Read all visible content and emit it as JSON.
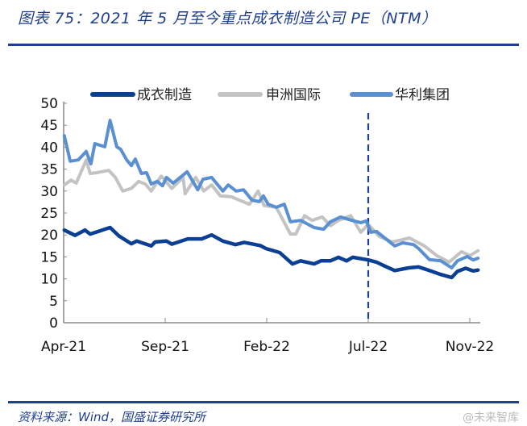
{
  "header": {
    "title": "图表 75：2021 年 5 月至今重点成衣制造公司 PE（NTM）"
  },
  "footer": {
    "source": "资料来源：Wind，国盛证券研究所",
    "watermark": "@未来智库"
  },
  "colors": {
    "title": "#1f3f8f",
    "rule": "#1d3f8c"
  },
  "chart_data": {
    "type": "line",
    "title": "",
    "xlabel": "",
    "ylabel": "",
    "ylim": [
      0,
      50
    ],
    "yticks": [
      0,
      5,
      10,
      15,
      20,
      25,
      30,
      35,
      40,
      45,
      50
    ],
    "xticks": [
      {
        "date": "2021-04-01",
        "label": "Apr-21"
      },
      {
        "date": "2021-09-01",
        "label": "Sep-21"
      },
      {
        "date": "2022-02-01",
        "label": "Feb-22"
      },
      {
        "date": "2022-07-01",
        "label": "Jul-22"
      },
      {
        "date": "2022-11-01",
        "label": "Nov-22"
      }
    ],
    "grid": false,
    "legend": "top",
    "annotations": [
      {
        "type": "vertical-dashed-line",
        "date": "2022-07-01",
        "color": "#1d3f8c"
      }
    ],
    "series": [
      {
        "name": "成衣制造",
        "color": "#0a3f94",
        "points": [
          [
            "2021-04-02",
            21.1
          ],
          [
            "2021-04-18",
            19.9
          ],
          [
            "2021-05-03",
            21.1
          ],
          [
            "2021-05-11",
            20.2
          ],
          [
            "2021-06-10",
            21.7
          ],
          [
            "2021-06-23",
            19.8
          ],
          [
            "2021-07-12",
            18.0
          ],
          [
            "2021-07-20",
            18.6
          ],
          [
            "2021-08-11",
            17.5
          ],
          [
            "2021-08-17",
            18.4
          ],
          [
            "2021-09-03",
            18.6
          ],
          [
            "2021-09-11",
            17.9
          ],
          [
            "2021-10-05",
            19.1
          ],
          [
            "2021-10-26",
            19.1
          ],
          [
            "2021-11-10",
            20.0
          ],
          [
            "2021-11-27",
            18.6
          ],
          [
            "2021-12-16",
            17.8
          ],
          [
            "2021-12-29",
            18.3
          ],
          [
            "2022-01-22",
            17.6
          ],
          [
            "2022-01-31",
            16.9
          ],
          [
            "2022-02-20",
            16.0
          ],
          [
            "2022-03-11",
            13.4
          ],
          [
            "2022-03-23",
            14.1
          ],
          [
            "2022-04-12",
            13.4
          ],
          [
            "2022-04-22",
            14.1
          ],
          [
            "2022-05-06",
            14.1
          ],
          [
            "2022-05-18",
            14.9
          ],
          [
            "2022-05-30",
            14.1
          ],
          [
            "2022-06-08",
            14.9
          ],
          [
            "2022-07-01",
            14.3
          ],
          [
            "2022-07-11",
            13.8
          ],
          [
            "2022-07-21",
            12.9
          ],
          [
            "2022-08-02",
            11.9
          ],
          [
            "2022-08-19",
            12.5
          ],
          [
            "2022-08-31",
            12.7
          ],
          [
            "2022-09-13",
            11.9
          ],
          [
            "2022-09-27",
            11.0
          ],
          [
            "2022-10-10",
            10.3
          ],
          [
            "2022-10-17",
            11.7
          ],
          [
            "2022-10-27",
            12.4
          ],
          [
            "2022-11-05",
            11.8
          ],
          [
            "2022-11-11",
            12.0
          ]
        ]
      },
      {
        "name": "申洲国际",
        "color": "#c3c3c3",
        "points": [
          [
            "2021-04-02",
            31.4
          ],
          [
            "2021-04-12",
            32.5
          ],
          [
            "2021-04-20",
            31.8
          ],
          [
            "2021-05-05",
            37.1
          ],
          [
            "2021-05-11",
            34.0
          ],
          [
            "2021-05-21",
            34.2
          ],
          [
            "2021-06-08",
            34.7
          ],
          [
            "2021-06-18",
            33.1
          ],
          [
            "2021-06-29",
            30.0
          ],
          [
            "2021-07-12",
            30.6
          ],
          [
            "2021-07-23",
            32.2
          ],
          [
            "2021-08-02",
            31.6
          ],
          [
            "2021-08-11",
            30.0
          ],
          [
            "2021-08-26",
            33.4
          ],
          [
            "2021-09-11",
            30.6
          ],
          [
            "2021-09-28",
            33.1
          ],
          [
            "2021-10-01",
            29.4
          ],
          [
            "2021-10-17",
            33.1
          ],
          [
            "2021-10-29",
            30.0
          ],
          [
            "2021-11-10",
            31.4
          ],
          [
            "2021-11-23",
            28.9
          ],
          [
            "2021-12-10",
            28.7
          ],
          [
            "2021-12-22",
            27.9
          ],
          [
            "2022-01-06",
            27.0
          ],
          [
            "2022-01-19",
            30.0
          ],
          [
            "2022-01-28",
            26.7
          ],
          [
            "2022-02-15",
            26.3
          ],
          [
            "2022-03-08",
            20.2
          ],
          [
            "2022-03-16",
            20.2
          ],
          [
            "2022-03-29",
            24.4
          ],
          [
            "2022-04-09",
            23.3
          ],
          [
            "2022-04-24",
            24.1
          ],
          [
            "2022-05-06",
            22.1
          ],
          [
            "2022-05-18",
            23.3
          ],
          [
            "2022-06-05",
            24.4
          ],
          [
            "2022-06-20",
            20.6
          ],
          [
            "2022-07-01",
            22.4
          ],
          [
            "2022-07-14",
            19.7
          ],
          [
            "2022-07-30",
            18.4
          ],
          [
            "2022-08-20",
            19.3
          ],
          [
            "2022-09-07",
            17.5
          ],
          [
            "2022-09-22",
            15.3
          ],
          [
            "2022-10-07",
            13.8
          ],
          [
            "2022-10-22",
            16.2
          ],
          [
            "2022-11-01",
            15.3
          ],
          [
            "2022-11-11",
            16.4
          ]
        ]
      },
      {
        "name": "华利集团",
        "color": "#5a8fd2",
        "points": [
          [
            "2021-04-02",
            42.6
          ],
          [
            "2021-04-11",
            36.8
          ],
          [
            "2021-04-23",
            37.1
          ],
          [
            "2021-05-05",
            39.0
          ],
          [
            "2021-05-12",
            36.2
          ],
          [
            "2021-05-18",
            40.8
          ],
          [
            "2021-06-02",
            40.1
          ],
          [
            "2021-06-10",
            46.1
          ],
          [
            "2021-06-20",
            40.1
          ],
          [
            "2021-06-26",
            39.5
          ],
          [
            "2021-07-05",
            37.1
          ],
          [
            "2021-07-12",
            35.8
          ],
          [
            "2021-07-18",
            37.3
          ],
          [
            "2021-07-27",
            34.0
          ],
          [
            "2021-08-04",
            34.2
          ],
          [
            "2021-08-11",
            31.6
          ],
          [
            "2021-08-20",
            32.2
          ],
          [
            "2021-08-28",
            31.2
          ],
          [
            "2021-09-03",
            33.1
          ],
          [
            "2021-09-13",
            31.8
          ],
          [
            "2021-10-04",
            34.4
          ],
          [
            "2021-10-20",
            30.3
          ],
          [
            "2021-10-28",
            32.7
          ],
          [
            "2021-11-10",
            33.1
          ],
          [
            "2021-11-27",
            30.0
          ],
          [
            "2021-12-05",
            31.4
          ],
          [
            "2021-12-17",
            30.0
          ],
          [
            "2021-12-28",
            30.3
          ],
          [
            "2022-01-10",
            27.9
          ],
          [
            "2022-01-21",
            27.6
          ],
          [
            "2022-01-27",
            28.9
          ],
          [
            "2022-02-03",
            27.0
          ],
          [
            "2022-02-15",
            26.3
          ],
          [
            "2022-02-27",
            27.0
          ],
          [
            "2022-03-08",
            23.0
          ],
          [
            "2022-03-23",
            23.3
          ],
          [
            "2022-04-12",
            21.7
          ],
          [
            "2022-04-26",
            21.3
          ],
          [
            "2022-05-06",
            23.0
          ],
          [
            "2022-05-21",
            24.1
          ],
          [
            "2022-06-07",
            23.3
          ],
          [
            "2022-06-20",
            22.8
          ],
          [
            "2022-06-28",
            23.2
          ],
          [
            "2022-07-04",
            20.6
          ],
          [
            "2022-07-11",
            20.8
          ],
          [
            "2022-07-21",
            19.3
          ],
          [
            "2022-08-02",
            17.5
          ],
          [
            "2022-08-12",
            18.2
          ],
          [
            "2022-08-25",
            17.8
          ],
          [
            "2022-08-31",
            16.9
          ],
          [
            "2022-09-13",
            14.4
          ],
          [
            "2022-09-27",
            14.1
          ],
          [
            "2022-10-10",
            12.5
          ],
          [
            "2022-10-17",
            14.1
          ],
          [
            "2022-10-29",
            15.1
          ],
          [
            "2022-11-05",
            14.3
          ],
          [
            "2022-11-11",
            14.7
          ]
        ]
      }
    ]
  }
}
